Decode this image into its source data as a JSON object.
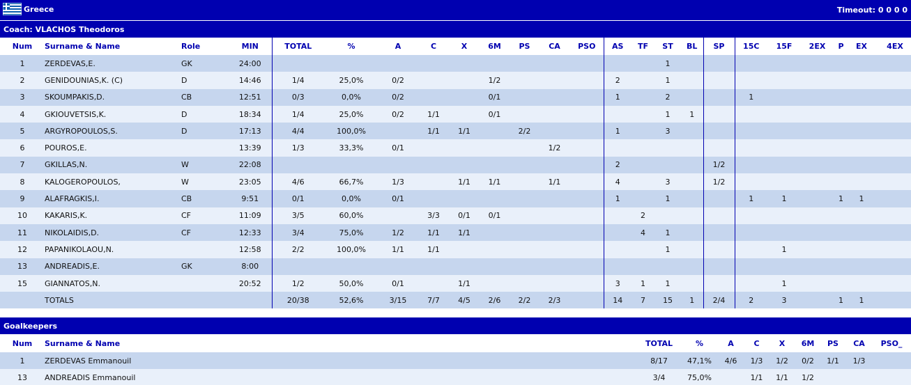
{
  "team": {
    "name": "Greece",
    "timeout_label": "Timeout: 0 0 0 0",
    "flag_icon": "greece-flag-icon"
  },
  "coach": {
    "label": "Coach: VLACHOS Theodoros"
  },
  "colors": {
    "header_bg": "#0000b0",
    "row_dark": "#c6d6ee",
    "row_light": "#e9f0fa",
    "header_text": "#0000b0"
  },
  "players": {
    "headers": [
      "Num",
      "Surname & Name",
      "Role",
      "MIN",
      "TOTAL",
      "%",
      "A",
      "C",
      "X",
      "6M",
      "PS",
      "CA",
      "PSO",
      "AS",
      "TF",
      "ST",
      "BL",
      "SP",
      "15C",
      "15F",
      "2EX",
      "P",
      "EX",
      "4EX"
    ],
    "rows": [
      [
        "1",
        "ZERDEVAS,E.",
        "GK",
        "24:00",
        "",
        "",
        "",
        "",
        "",
        "",
        "",
        "",
        "",
        "",
        "",
        "1",
        "",
        "",
        "",
        "",
        "",
        "",
        "",
        ""
      ],
      [
        "2",
        "GENIDOUNIAS,K.  (C)",
        "D",
        "14:46",
        "1/4",
        "25,0%",
        "0/2",
        "",
        "",
        "1/2",
        "",
        "",
        "",
        "2",
        "",
        "1",
        "",
        "",
        "",
        "",
        "",
        "",
        "",
        ""
      ],
      [
        "3",
        "SKOUMPAKIS,D.",
        "CB",
        "12:51",
        "0/3",
        "0,0%",
        "0/2",
        "",
        "",
        "0/1",
        "",
        "",
        "",
        "1",
        "",
        "2",
        "",
        "",
        "1",
        "",
        "",
        "",
        "",
        ""
      ],
      [
        "4",
        "GKIOUVETSIS,K.",
        "D",
        "18:34",
        "1/4",
        "25,0%",
        "0/2",
        "1/1",
        "",
        "0/1",
        "",
        "",
        "",
        "",
        "",
        "1",
        "1",
        "",
        "",
        "",
        "",
        "",
        "",
        ""
      ],
      [
        "5",
        "ARGYROPOULOS,S.",
        "D",
        "17:13",
        "4/4",
        "100,0%",
        "",
        "1/1",
        "1/1",
        "",
        "2/2",
        "",
        "",
        "1",
        "",
        "3",
        "",
        "",
        "",
        "",
        "",
        "",
        "",
        ""
      ],
      [
        "6",
        "POUROS,E.",
        "",
        "13:39",
        "1/3",
        "33,3%",
        "0/1",
        "",
        "",
        "",
        "",
        "1/2",
        "",
        "",
        "",
        "",
        "",
        "",
        "",
        "",
        "",
        "",
        "",
        ""
      ],
      [
        "7",
        "GKILLAS,N.",
        "W",
        "22:08",
        "",
        "",
        "",
        "",
        "",
        "",
        "",
        "",
        "",
        "2",
        "",
        "",
        "",
        "1/2",
        "",
        "",
        "",
        "",
        "",
        ""
      ],
      [
        "8",
        "KALOGEROPOULOS,",
        "W",
        "23:05",
        "4/6",
        "66,7%",
        "1/3",
        "",
        "1/1",
        "1/1",
        "",
        "1/1",
        "",
        "4",
        "",
        "3",
        "",
        "1/2",
        "",
        "",
        "",
        "",
        "",
        ""
      ],
      [
        "9",
        "ALAFRAGKIS,I.",
        "CB",
        "9:51",
        "0/1",
        "0,0%",
        "0/1",
        "",
        "",
        "",
        "",
        "",
        "",
        "1",
        "",
        "1",
        "",
        "",
        "1",
        "1",
        "",
        "1",
        "1",
        ""
      ],
      [
        "10",
        "KAKARIS,K.",
        "CF",
        "11:09",
        "3/5",
        "60,0%",
        "",
        "3/3",
        "0/1",
        "0/1",
        "",
        "",
        "",
        "",
        "2",
        "",
        "",
        "",
        "",
        "",
        "",
        "",
        "",
        ""
      ],
      [
        "11",
        "NIKOLAIDIS,D.",
        "CF",
        "12:33",
        "3/4",
        "75,0%",
        "1/2",
        "1/1",
        "1/1",
        "",
        "",
        "",
        "",
        "",
        "4",
        "1",
        "",
        "",
        "",
        "",
        "",
        "",
        "",
        ""
      ],
      [
        "12",
        "PAPANIKOLAOU,N.",
        "",
        "12:58",
        "2/2",
        "100,0%",
        "1/1",
        "1/1",
        "",
        "",
        "",
        "",
        "",
        "",
        "",
        "1",
        "",
        "",
        "",
        "1",
        "",
        "",
        "",
        ""
      ],
      [
        "13",
        "ANDREADIS,E.",
        "GK",
        "8:00",
        "",
        "",
        "",
        "",
        "",
        "",
        "",
        "",
        "",
        "",
        "",
        "",
        "",
        "",
        "",
        "",
        "",
        "",
        "",
        ""
      ],
      [
        "15",
        "GIANNATOS,N.",
        "",
        "20:52",
        "1/2",
        "50,0%",
        "0/1",
        "",
        "1/1",
        "",
        "",
        "",
        "",
        "3",
        "1",
        "1",
        "",
        "",
        "",
        "1",
        "",
        "",
        "",
        ""
      ]
    ],
    "totals": [
      "",
      "TOTALS",
      "",
      "",
      "20/38",
      "52,6%",
      "3/15",
      "7/7",
      "4/5",
      "2/6",
      "2/2",
      "2/3",
      "",
      "14",
      "7",
      "15",
      "1",
      "2/4",
      "2",
      "3",
      "",
      "1",
      "1",
      ""
    ]
  },
  "goalkeepers": {
    "section_label": "Goalkeepers",
    "headers": [
      "Num",
      "Surname & Name",
      "TOTAL",
      "%",
      "A",
      "C",
      "X",
      "6M",
      "PS",
      "CA",
      "PSO_"
    ],
    "rows": [
      [
        "1",
        "ZERDEVAS Emmanouil",
        "8/17",
        "47,1%",
        "4/6",
        "1/3",
        "1/2",
        "0/2",
        "1/1",
        "1/3",
        ""
      ],
      [
        "13",
        "ANDREADIS Emmanouil",
        "3/4",
        "75,0%",
        "",
        "1/1",
        "1/1",
        "1/2",
        "",
        "",
        ""
      ]
    ]
  }
}
